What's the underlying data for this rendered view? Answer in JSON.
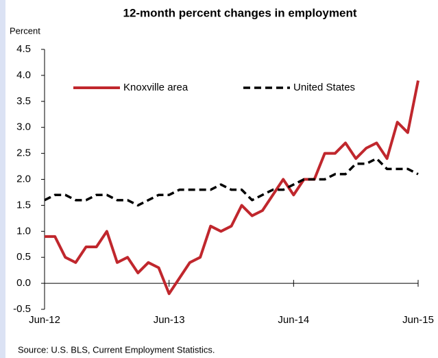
{
  "chart_data": {
    "type": "line",
    "title": "12-month percent changes in employment",
    "y_label": "Percent",
    "source": "Source: U.S. BLS, Current Employment Statistics.",
    "categories": [
      "Jun-12",
      null,
      null,
      null,
      null,
      null,
      null,
      null,
      null,
      null,
      null,
      null,
      "Jun-13",
      null,
      null,
      null,
      null,
      null,
      null,
      null,
      null,
      null,
      null,
      null,
      "Jun-14",
      null,
      null,
      null,
      null,
      null,
      null,
      null,
      null,
      null,
      null,
      null,
      "Jun-15"
    ],
    "series": [
      {
        "name": "Knoxville area",
        "color": "#c0272d",
        "style": "solid",
        "values": [
          0.9,
          0.9,
          0.5,
          0.4,
          0.7,
          0.7,
          1.0,
          0.4,
          0.5,
          0.2,
          0.4,
          0.3,
          -0.2,
          0.1,
          0.4,
          0.5,
          1.1,
          1.0,
          1.1,
          1.5,
          1.3,
          1.4,
          1.7,
          2.0,
          1.7,
          2.0,
          2.0,
          2.5,
          2.5,
          2.7,
          2.4,
          2.6,
          2.7,
          2.4,
          3.1,
          2.9,
          3.9
        ]
      },
      {
        "name": "United States",
        "color": "#000000",
        "style": "dashed",
        "values": [
          1.6,
          1.7,
          1.7,
          1.6,
          1.6,
          1.7,
          1.7,
          1.6,
          1.6,
          1.5,
          1.6,
          1.7,
          1.7,
          1.8,
          1.8,
          1.8,
          1.8,
          1.9,
          1.8,
          1.8,
          1.6,
          1.7,
          1.8,
          1.8,
          1.9,
          2.0,
          2.0,
          2.0,
          2.1,
          2.1,
          2.3,
          2.3,
          2.4,
          2.2,
          2.2,
          2.2,
          2.1
        ]
      }
    ],
    "ylim": [
      -0.5,
      4.5
    ],
    "yticks": [
      -0.5,
      {
        "value": 0,
        "label": "0.0"
      },
      0.5,
      {
        "value": 1,
        "label": "1.0"
      },
      1.5,
      {
        "value": 2,
        "label": "2.0"
      },
      2.5,
      {
        "value": 3,
        "label": "3.0"
      },
      3.5,
      {
        "value": 4,
        "label": "4.0"
      },
      4.5
    ],
    "legend": "top"
  }
}
